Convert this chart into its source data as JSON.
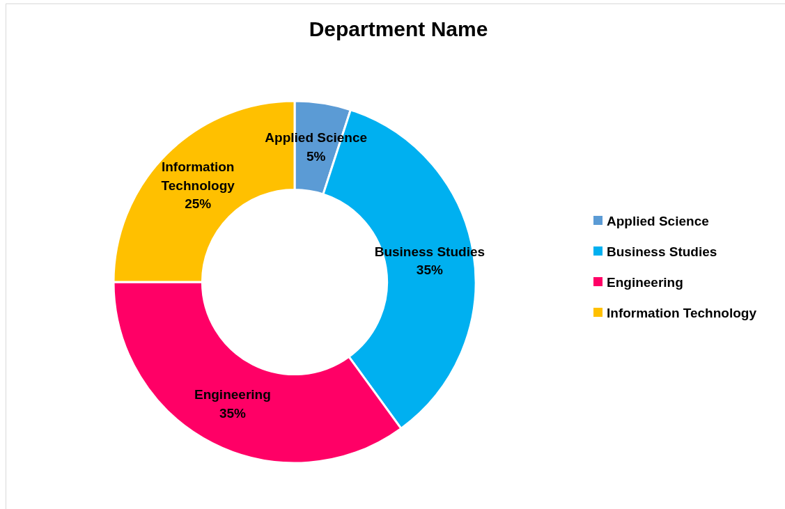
{
  "chart_data": {
    "type": "donut",
    "title": "Department Name",
    "categories": [
      "Applied Science",
      "Business Studies",
      "Engineering",
      "Information Technology"
    ],
    "values": [
      5,
      35,
      35,
      25
    ],
    "colors": [
      "#5b9bd5",
      "#00b0f0",
      "#ff0066",
      "#ffc000"
    ],
    "value_labels": [
      "5%",
      "35%",
      "35%",
      "25%"
    ],
    "legend": "right"
  }
}
